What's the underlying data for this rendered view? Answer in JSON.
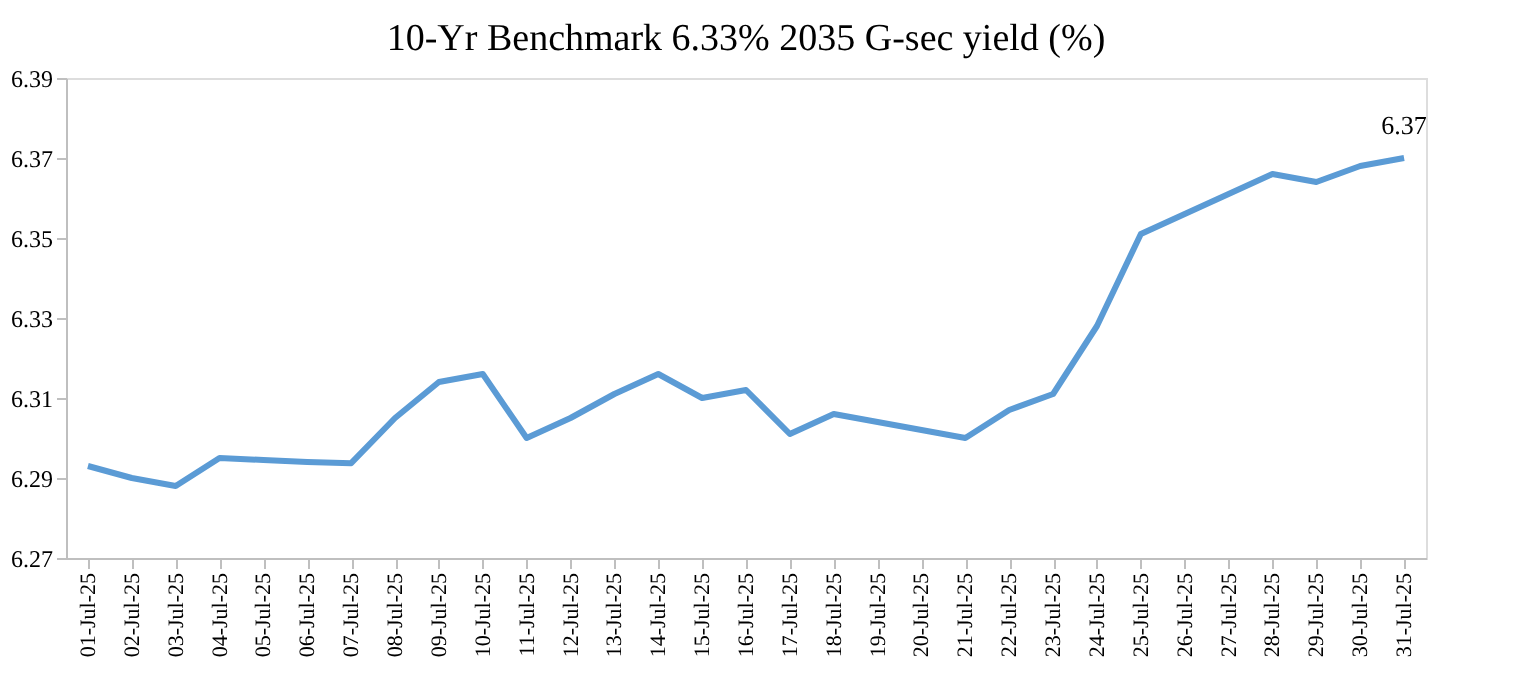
{
  "chart_data": {
    "type": "line",
    "title": "10-Yr Benchmark  6.33% 2035 G-sec yield (%)",
    "categories": [
      "01-Jul-25",
      "02-Jul-25",
      "03-Jul-25",
      "04-Jul-25",
      "05-Jul-25",
      "06-Jul-25",
      "07-Jul-25",
      "08-Jul-25",
      "09-Jul-25",
      "10-Jul-25",
      "11-Jul-25",
      "12-Jul-25",
      "13-Jul-25",
      "14-Jul-25",
      "15-Jul-25",
      "16-Jul-25",
      "17-Jul-25",
      "18-Jul-25",
      "19-Jul-25",
      "20-Jul-25",
      "21-Jul-25",
      "22-Jul-25",
      "23-Jul-25",
      "24-Jul-25",
      "25-Jul-25",
      "26-Jul-25",
      "27-Jul-25",
      "28-Jul-25",
      "29-Jul-25",
      "30-Jul-25",
      "31-Jul-25"
    ],
    "series": [
      {
        "color": "#5b9bd5",
        "values": [
          6.293,
          6.29,
          6.288,
          6.295,
          6.2945,
          6.294,
          6.2937,
          6.305,
          6.314,
          6.316,
          6.3,
          6.305,
          6.311,
          6.316,
          6.31,
          6.312,
          6.301,
          6.306,
          6.304,
          6.302,
          6.3,
          6.307,
          6.311,
          6.328,
          6.351,
          6.356,
          6.361,
          6.366,
          6.364,
          6.368,
          6.37
        ],
        "value_labels": [
          null,
          null,
          null,
          null,
          null,
          null,
          null,
          null,
          null,
          null,
          null,
          null,
          null,
          null,
          null,
          null,
          null,
          null,
          null,
          null,
          null,
          null,
          null,
          null,
          null,
          null,
          null,
          null,
          null,
          null,
          "6.37"
        ]
      }
    ],
    "ylim": [
      6.27,
      6.39
    ],
    "yticks": [
      6.27,
      6.29,
      6.31,
      6.33,
      6.35,
      6.37,
      6.39
    ],
    "grid": false,
    "marker": "none",
    "line_style": "solid"
  }
}
